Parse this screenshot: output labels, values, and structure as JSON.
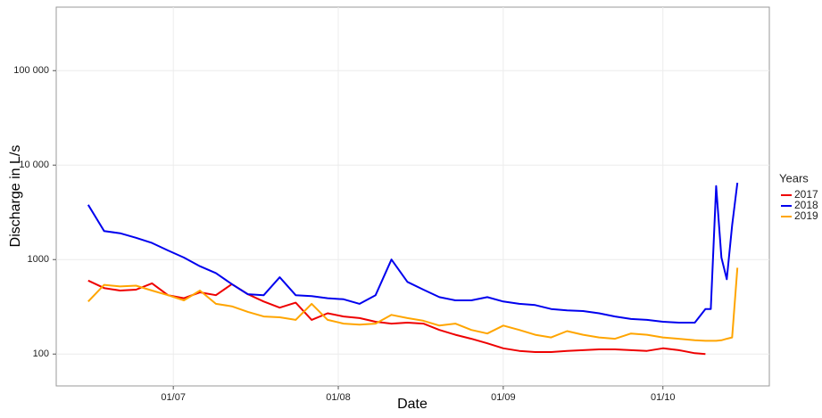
{
  "chart_data": {
    "type": "line",
    "x_label": "Date",
    "y_label": "Discharge in L/s",
    "legend_title": "Years",
    "legend": "right",
    "log_y": true,
    "grid": true,
    "x": [
      "15/06",
      "18/06",
      "21/06",
      "24/06",
      "27/06",
      "30/06",
      "03/07",
      "06/07",
      "09/07",
      "12/07",
      "15/07",
      "18/07",
      "21/07",
      "24/07",
      "27/07",
      "30/07",
      "02/08",
      "05/08",
      "08/08",
      "11/08",
      "14/08",
      "17/08",
      "20/08",
      "23/08",
      "26/08",
      "29/08",
      "01/09",
      "04/09",
      "07/09",
      "10/09",
      "13/09",
      "16/09",
      "19/09",
      "22/09",
      "25/09",
      "28/09",
      "01/10",
      "04/10",
      "07/10",
      "09/10",
      "10/10",
      "11/10",
      "12/10",
      "13/10",
      "14/10",
      "15/10"
    ],
    "xlim": [
      "09/06",
      "21/10"
    ],
    "xticks": [
      "01/07",
      "01/08",
      "01/09",
      "01/10"
    ],
    "ylim": [
      46,
      470000
    ],
    "yticks": [
      100,
      1000,
      {
        "value": 10000,
        "label": "10 000"
      },
      {
        "value": 100000,
        "label": "100 000"
      }
    ],
    "series": [
      {
        "name": "2017",
        "color": "#ee0000",
        "values": [
          600,
          500,
          470,
          480,
          560,
          420,
          390,
          450,
          420,
          550,
          430,
          360,
          310,
          350,
          230,
          270,
          250,
          240,
          220,
          210,
          215,
          210,
          180,
          160,
          145,
          130,
          115,
          108,
          105,
          105,
          108,
          110,
          112,
          112,
          110,
          108,
          115,
          110,
          102,
          100,
          null,
          null,
          null,
          null,
          null,
          null
        ]
      },
      {
        "name": "2018",
        "color": "#0000ee",
        "values": [
          3800,
          2000,
          1900,
          1700,
          1500,
          1250,
          1050,
          850,
          720,
          550,
          430,
          420,
          650,
          420,
          410,
          390,
          380,
          340,
          420,
          1000,
          580,
          480,
          400,
          370,
          370,
          400,
          360,
          340,
          330,
          300,
          290,
          285,
          270,
          250,
          235,
          230,
          220,
          215,
          215,
          300,
          300,
          6000,
          1050,
          620,
          2300,
          6500
        ]
      },
      {
        "name": "2019",
        "color": "#ffa500",
        "values": [
          360,
          540,
          520,
          530,
          470,
          420,
          370,
          470,
          340,
          320,
          280,
          250,
          245,
          230,
          340,
          230,
          210,
          205,
          210,
          260,
          240,
          225,
          200,
          210,
          180,
          165,
          200,
          180,
          160,
          150,
          175,
          160,
          150,
          145,
          165,
          160,
          150,
          145,
          140,
          138,
          138,
          138,
          140,
          145,
          150,
          820
        ]
      }
    ]
  }
}
